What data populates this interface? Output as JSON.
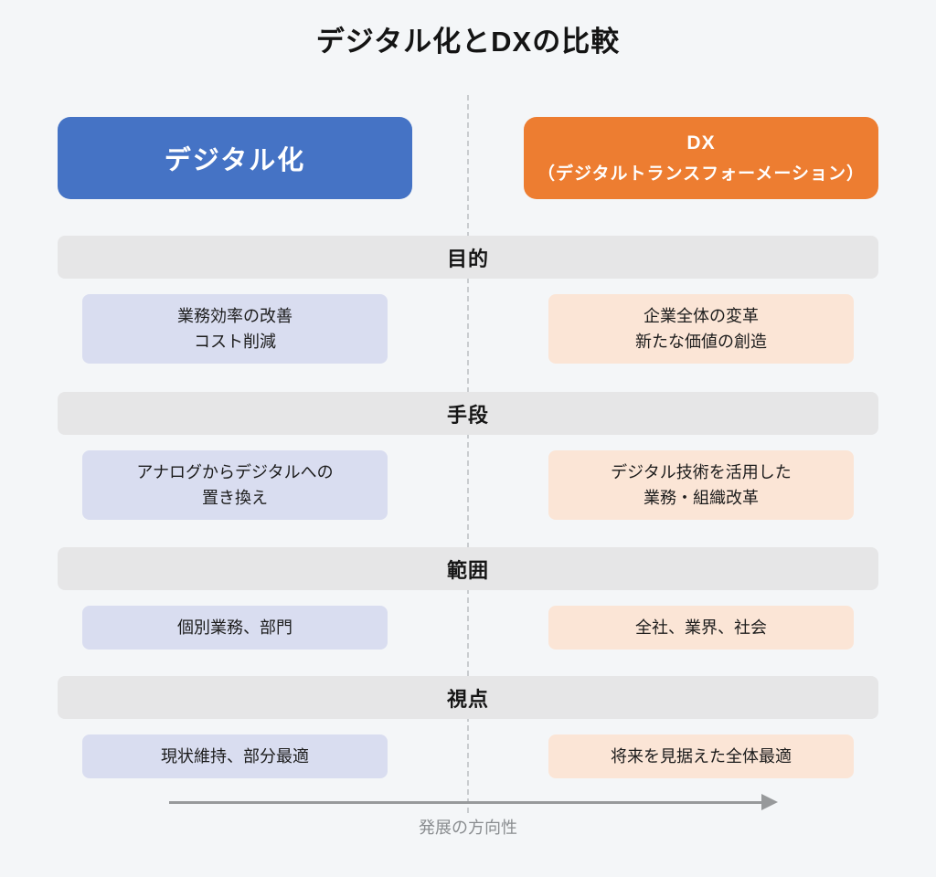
{
  "title": "デジタル化とDXの比較",
  "colors": {
    "background": "#F4F6F8",
    "digitalization_header": "#4573C5",
    "dx_header": "#ED7D31",
    "digitalization_cell": "#D9DDF0",
    "dx_cell": "#FBE5D6",
    "section_bar": "#E6E6E7",
    "arrow": "#97999B"
  },
  "headers": {
    "left": "デジタル化",
    "right_line1": "DX",
    "right_line2": "（デジタルトランスフォーメーション）"
  },
  "rows": [
    {
      "section": "目的",
      "left": "業務効率の改善\nコスト削減",
      "right": "企業全体の変革\n新たな価値の創造"
    },
    {
      "section": "手段",
      "left": "アナログからデジタルへの\n置き換え",
      "right": "デジタル技術を活用した\n業務・組織改革"
    },
    {
      "section": "範囲",
      "left": "個別業務、部門",
      "right": "全社、業界、社会"
    },
    {
      "section": "視点",
      "left": "現状維持、部分最適",
      "right": "将来を見据えた全体最適"
    }
  ],
  "footer": {
    "axis_label": "発展の方向性"
  }
}
